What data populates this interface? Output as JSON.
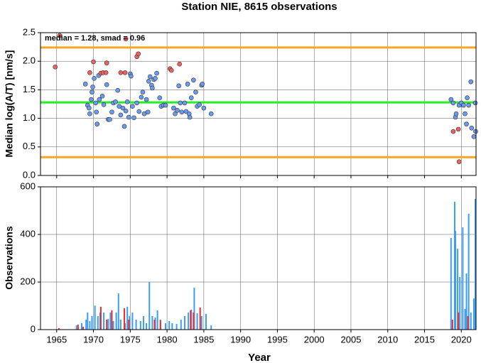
{
  "chart_data": [
    {
      "type": "scatter",
      "title": "Station NIE, 8615 observations",
      "y_label": "Median log(A/T) [nm/s]",
      "annotation": "median = 1.28, smad = 0.96",
      "xlim": [
        1962.8,
        2022.0
      ],
      "ylim": [
        0,
        2.5
      ],
      "yticks": [
        {
          "value": 0,
          "label": "0.0"
        },
        0.5,
        {
          "value": 1,
          "label": "1.0"
        },
        1.5,
        {
          "value": 2,
          "label": "2.0"
        },
        2.5
      ],
      "grid": true,
      "hlines": [
        {
          "value": 2.24,
          "color": "#f5a623"
        },
        {
          "value": 1.28,
          "color": "#22ee22"
        },
        {
          "value": 0.32,
          "color": "#f5a623"
        }
      ],
      "series": [
        {
          "color": "#6a9bf0",
          "x": [
            1968.9,
            1969.2,
            1969.4,
            1969.5,
            1969.7,
            1969.8,
            1969.9,
            1970.1,
            1970.3,
            1970.4,
            1970.5,
            1970.7,
            1970.8,
            1971.2,
            1971.4,
            1971.8,
            1972.0,
            1972.2,
            1972.5,
            1972.7,
            1973.0,
            1973.3,
            1973.5,
            1973.7,
            1974.0,
            1974.2,
            1974.4,
            1974.6,
            1974.8,
            1975.0,
            1975.1,
            1975.3,
            1975.5,
            1975.9,
            1976.2,
            1976.5,
            1976.7,
            1976.9,
            1977.2,
            1977.4,
            1977.5,
            1977.7,
            1977.9,
            1978.0,
            1978.2,
            1978.4,
            1978.6,
            1979.0,
            1979.2,
            1979.5,
            1979.8,
            1980.9,
            1981.1,
            1981.4,
            1981.6,
            1981.8,
            1982.0,
            1982.4,
            1982.6,
            1982.8,
            1983.0,
            1983.1,
            1983.3,
            1983.6,
            1983.9,
            1984.1,
            1984.4,
            1984.7,
            1984.8,
            1985.0,
            1986.0,
            2018.6,
            2018.9,
            2019.2,
            2019.3,
            2019.7,
            2020.0,
            2020.3,
            2020.5,
            2020.7,
            2020.8,
            2021.0,
            2021.3,
            2021.4,
            2021.7,
            2021.9,
            2021.95
          ],
          "values": [
            1.6,
            1.23,
            1.18,
            1.08,
            1.33,
            1.46,
            1.55,
            1.7,
            1.27,
            1.11,
            0.9,
            1.75,
            1.33,
            1.39,
            1.24,
            1.59,
            0.98,
            0.98,
            1.11,
            1.27,
            1.29,
            1.49,
            1.21,
            1.06,
            1.18,
            0.86,
            1.13,
            1.29,
            1.02,
            1.78,
            1.74,
            1.21,
            1.01,
            1.27,
            1.12,
            1.37,
            1.46,
            1.08,
            1.33,
            1.11,
            1.65,
            1.73,
            1.58,
            1.53,
            1.68,
            1.7,
            1.79,
            1.36,
            1.21,
            1.23,
            1.23,
            1.18,
            1.08,
            1.14,
            1.57,
            1.27,
            1.11,
            1.27,
            1.12,
            1.6,
            1.08,
            1.02,
            1.36,
            1.67,
            1.46,
            1.21,
            1.24,
            1.58,
            1.6,
            1.18,
            1.08,
            1.33,
            1.27,
            1.02,
            1.08,
            1.23,
            1.27,
            1.23,
            1.08,
            0.9,
            1.36,
            1.23,
            1.64,
            0.83,
            0.68,
            1.27,
            0.77
          ]
        },
        {
          "color": "#f06060",
          "x": [
            1964.8,
            1965.4,
            1969.5,
            1970.0,
            1971.0,
            1971.3,
            1971.7,
            1971.8,
            1973.7,
            1974.3,
            1974.4,
            1975.9,
            1976.1,
            1980.4,
            1980.6,
            1981.7,
            2018.9,
            2019.6,
            2019.7
          ],
          "values": [
            1.9,
            2.45,
            1.8,
            1.99,
            1.79,
            1.8,
            1.8,
            1.97,
            1.8,
            1.8,
            2.39,
            2.08,
            2.13,
            1.87,
            1.84,
            1.95,
            0.77,
            0.81,
            0.24
          ]
        }
      ]
    },
    {
      "type": "bar",
      "x_label": "Year",
      "y_label": "Observations",
      "xlim": [
        1962.8,
        2022.0
      ],
      "ylim": [
        0,
        600
      ],
      "xticks": [
        1965,
        1970,
        1975,
        1980,
        1985,
        1990,
        1995,
        2000,
        2005,
        2010,
        2015,
        2020
      ],
      "yticks": [
        0,
        200,
        400,
        600
      ],
      "grid": true,
      "series": [
        {
          "color": "#3a9ef0",
          "x": [
            1967.7,
            1968.4,
            1969.0,
            1969.2,
            1969.5,
            1969.8,
            1970.2,
            1970.6,
            1970.9,
            1971.4,
            1972.0,
            1972.3,
            1972.7,
            1973.1,
            1973.4,
            1973.7,
            1974.3,
            1974.6,
            1974.9,
            1975.3,
            1975.8,
            1976.4,
            1976.8,
            1977.2,
            1977.6,
            1978.0,
            1978.4,
            1978.7,
            1979.1,
            1979.8,
            1980.3,
            1980.7,
            1981.3,
            1981.9,
            1982.4,
            1982.9,
            1983.3,
            1983.7,
            1984.1,
            1984.7,
            1985.3,
            1986.0,
            2018.6,
            2019.1,
            2019.2,
            2019.5,
            2019.8,
            2020.2,
            2020.5,
            2020.7,
            2021.0,
            2021.3,
            2021.7,
            2021.9
          ],
          "values": [
            18,
            27,
            42,
            72,
            36,
            57,
            101,
            57,
            72,
            72,
            45,
            72,
            36,
            72,
            152,
            42,
            27,
            96,
            57,
            72,
            42,
            36,
            57,
            27,
            200,
            57,
            51,
            81,
            42,
            27,
            36,
            27,
            24,
            42,
            57,
            72,
            84,
            176,
            69,
            57,
            66,
            18,
            385,
            537,
            415,
            340,
            221,
            430,
            87,
            236,
            487,
            72,
            131,
            549
          ]
        },
        {
          "color": "#ee2a2a",
          "x": [
            1965.3,
            1967.9,
            1968.6,
            1971.0,
            1971.8,
            1972.5,
            1974.2,
            1974.8,
            1978.3,
            1979.1,
            1983.2,
            1983.6,
            1984.5,
            2018.8,
            2019.6,
            2020.9
          ],
          "values": [
            6,
            21,
            12,
            96,
            42,
            81,
            90,
            42,
            42,
            39,
            81,
            72,
            93,
            42,
            72,
            57
          ]
        }
      ]
    }
  ]
}
